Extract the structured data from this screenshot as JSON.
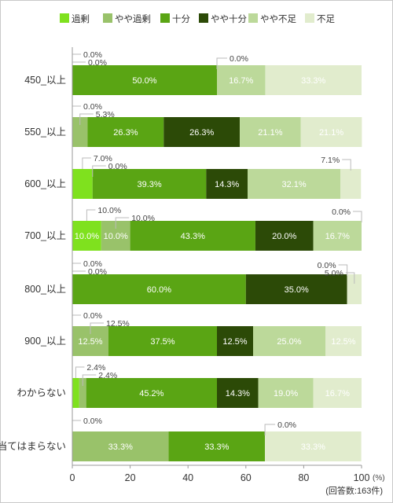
{
  "chart_data": {
    "type": "bar",
    "orientation": "horizontal",
    "stacked": true,
    "categories": [
      "450_以上",
      "550_以上",
      "600_以上",
      "700_以上",
      "800_以上",
      "900_以上",
      "わからない",
      "当てはまらない"
    ],
    "series": [
      {
        "name": "過剰",
        "color": "#7fe11e",
        "text_color": "#ffffff",
        "values": [
          0.0,
          0.0,
          7.0,
          10.0,
          0.0,
          0.0,
          2.4,
          0.0
        ]
      },
      {
        "name": "やや過剰",
        "color": "#99c26a",
        "text_color": "#ffffff",
        "values": [
          0.0,
          5.3,
          0.0,
          10.0,
          0.0,
          12.5,
          2.4,
          33.3
        ]
      },
      {
        "name": "十分",
        "color": "#5aa514",
        "text_color": "#ffffff",
        "values": [
          50.0,
          26.3,
          39.3,
          43.3,
          60.0,
          37.5,
          45.2,
          33.3
        ]
      },
      {
        "name": "やや十分",
        "color": "#2c4a07",
        "text_color": "#ffffff",
        "values": [
          0.0,
          26.3,
          14.3,
          20.0,
          35.0,
          12.5,
          14.3,
          0.0
        ]
      },
      {
        "name": "やや不足",
        "color": "#bcd99a",
        "text_color": "#ffffff",
        "values": [
          16.7,
          21.1,
          32.1,
          16.7,
          0.0,
          25.0,
          19.0,
          0.0
        ]
      },
      {
        "name": "不足",
        "color": "#e1eccd",
        "text_color": "#ffffff",
        "values": [
          33.3,
          21.1,
          7.1,
          0.0,
          5.0,
          12.5,
          16.7,
          33.3
        ]
      }
    ],
    "xlim": [
      0,
      100
    ],
    "xticks": [
      0,
      20,
      40,
      60,
      80,
      100
    ],
    "x_unit": "(%)",
    "legend_position": "top",
    "grid": false,
    "note": "(回答数:163件)"
  }
}
